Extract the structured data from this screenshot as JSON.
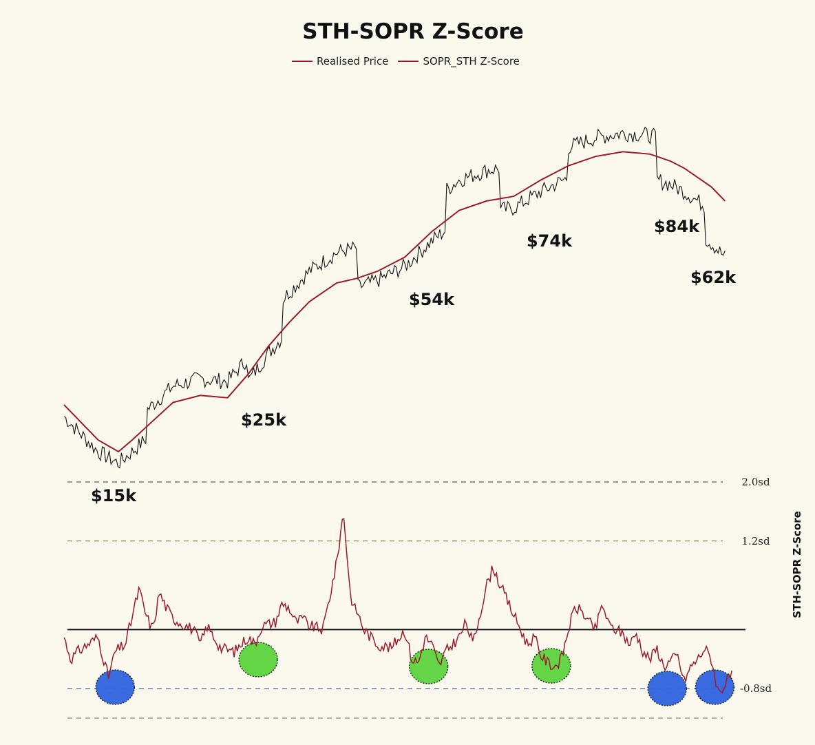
{
  "chart_data": {
    "type": "line",
    "title": "STH-SOPR Z-Score",
    "legend": [
      "Realised Price",
      "SOPR_STH Z-Score"
    ],
    "legend_placement": "top-center",
    "colors": {
      "realised_price": "#9b1b2a",
      "zscore": "#9b1b2a",
      "price": "#111111",
      "zero_line": "#111111"
    },
    "price_panel": {
      "series": [
        {
          "name": "Realised Price",
          "x": [
            0,
            0.02,
            0.05,
            0.08,
            0.1,
            0.13,
            0.16,
            0.2,
            0.24,
            0.27,
            0.3,
            0.33,
            0.36,
            0.4,
            0.43,
            0.46,
            0.5,
            0.54,
            0.58,
            0.62,
            0.66,
            0.7,
            0.74,
            0.78,
            0.82,
            0.86,
            0.89,
            0.91,
            0.93,
            0.95,
            0.97
          ],
          "values": [
            27000,
            24000,
            19500,
            17000,
            19500,
            23500,
            27500,
            29000,
            28500,
            33500,
            39500,
            44500,
            49000,
            53000,
            54000,
            55500,
            58500,
            64000,
            68500,
            70500,
            71500,
            75000,
            78000,
            80000,
            81000,
            80500,
            79000,
            77500,
            75500,
            73500,
            70500
          ]
        }
      ],
      "price_annotations": [
        "$15k",
        "$25k",
        "$54k",
        "$74k",
        "$84k",
        "$62k"
      ]
    },
    "zscore_panel": {
      "axis_title": "STH-SOPR Z-Score",
      "ref_lines": [
        {
          "label": "2.0sd",
          "value": 2.0
        },
        {
          "label": "1.2sd",
          "value": 1.2
        },
        {
          "label": "",
          "value": 0.0
        },
        {
          "label": "-0.8sd",
          "value": -0.8
        },
        {
          "label": "",
          "value": -1.2
        }
      ],
      "ylim": [
        -1.3,
        2.2
      ],
      "series": [
        {
          "name": "SOPR_STH Z-Score",
          "x": [
            0,
            0.01,
            0.02,
            0.035,
            0.05,
            0.065,
            0.075,
            0.09,
            0.11,
            0.12,
            0.13,
            0.14,
            0.15,
            0.16,
            0.17,
            0.19,
            0.2,
            0.21,
            0.23,
            0.25,
            0.27,
            0.28,
            0.29,
            0.31,
            0.32,
            0.33,
            0.34,
            0.35,
            0.36,
            0.38,
            0.39,
            0.4,
            0.41,
            0.42,
            0.425,
            0.43,
            0.44,
            0.46,
            0.48,
            0.5,
            0.51,
            0.52,
            0.53,
            0.54,
            0.55,
            0.56,
            0.58,
            0.59,
            0.6,
            0.61,
            0.62,
            0.63,
            0.64,
            0.65,
            0.66,
            0.67,
            0.68,
            0.69,
            0.7,
            0.71,
            0.72,
            0.73,
            0.74,
            0.75,
            0.76,
            0.77,
            0.78,
            0.79,
            0.8,
            0.81,
            0.82,
            0.83,
            0.84,
            0.85,
            0.86,
            0.87,
            0.88,
            0.9,
            0.91,
            0.92,
            0.93,
            0.94,
            0.95,
            0.96,
            0.97,
            0.98
          ],
          "values": [
            -0.1,
            -0.4,
            -0.3,
            -0.2,
            -0.1,
            -0.65,
            -0.3,
            -0.2,
            0.55,
            0.2,
            0.0,
            0.5,
            0.3,
            0.15,
            0.1,
            0.0,
            -0.2,
            0.05,
            -0.25,
            -0.3,
            -0.1,
            -0.2,
            0.05,
            0.1,
            0.35,
            0.3,
            0.1,
            0.15,
            0.05,
            0.0,
            0.45,
            0.9,
            1.6,
            0.5,
            0.3,
            0.25,
            0.0,
            -0.2,
            -0.25,
            0.0,
            -0.4,
            -0.45,
            -0.1,
            -0.2,
            -0.5,
            -0.3,
            -0.1,
            0.1,
            -0.2,
            0.2,
            0.6,
            0.85,
            0.6,
            0.4,
            0.2,
            0.0,
            -0.2,
            -0.1,
            -0.35,
            -0.45,
            -0.5,
            -0.4,
            0.0,
            0.3,
            0.25,
            0.1,
            0.0,
            0.35,
            0.05,
            0.0,
            -0.05,
            -0.2,
            -0.05,
            -0.3,
            -0.4,
            -0.25,
            -0.5,
            -0.35,
            -0.7,
            -0.5,
            -0.4,
            -0.25,
            -0.4,
            -0.85,
            -0.75,
            -0.6
          ]
        },
        {
          "name": "",
          "x": [],
          "values": []
        }
      ]
    },
    "grid": false
  }
}
